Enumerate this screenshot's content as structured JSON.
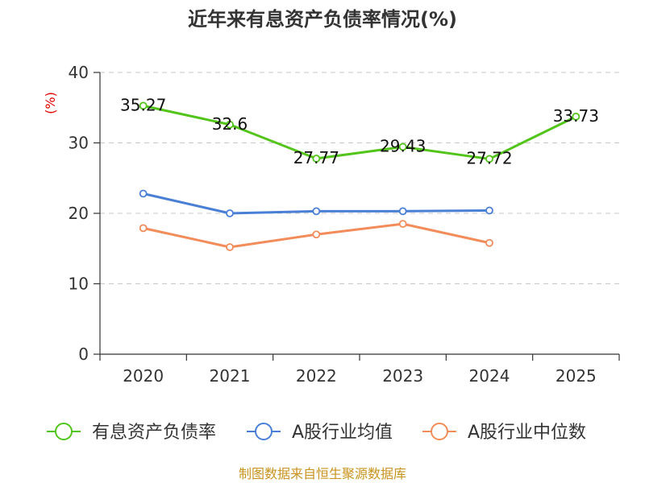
{
  "chart_data": {
    "type": "line",
    "title": "近年来有息资产负债率情况(%)",
    "ylabel": "(%)",
    "xlabel": "",
    "categories": [
      "2020",
      "2021",
      "2022",
      "2023",
      "2024",
      "2025"
    ],
    "ylim": [
      0,
      40
    ],
    "yticks": [
      0,
      10,
      20,
      30,
      40
    ],
    "grid": true,
    "legend_position": "bottom",
    "series": [
      {
        "name": "有息资产负债率",
        "color": "#52c41a",
        "values": [
          35.27,
          32.6,
          27.77,
          29.43,
          27.72,
          33.73
        ],
        "labels": [
          "35.27",
          "32.6",
          "27.77",
          "29.43",
          "27.72",
          "33.73"
        ]
      },
      {
        "name": "A股行业均值",
        "color": "#4a7fd6",
        "values": [
          22.8,
          20.0,
          20.3,
          20.3,
          20.4,
          null
        ]
      },
      {
        "name": "A股行业中位数",
        "color": "#f28c5a",
        "values": [
          17.9,
          15.2,
          17.0,
          18.5,
          15.8,
          null
        ]
      }
    ],
    "source": "制图数据来自恒生聚源数据库"
  }
}
